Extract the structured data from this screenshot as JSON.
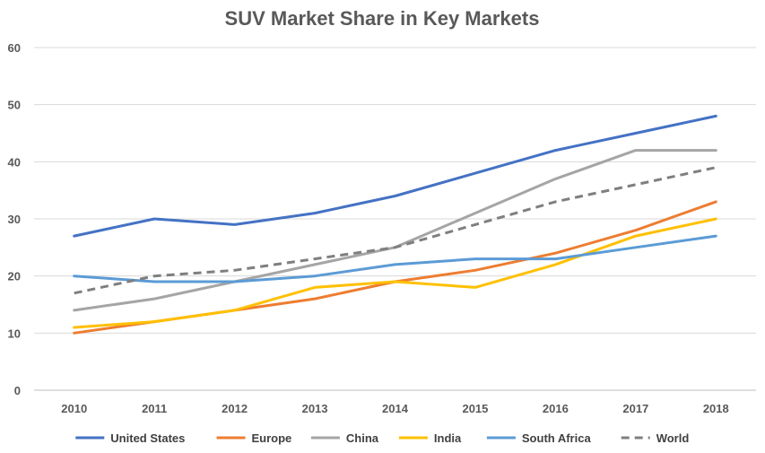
{
  "chart_data": {
    "type": "line",
    "title": "SUV Market Share in Key Markets",
    "xlabel": "",
    "ylabel": "",
    "x": [
      "2010",
      "2011",
      "2012",
      "2013",
      "2014",
      "2015",
      "2016",
      "2017",
      "2018"
    ],
    "ylim": [
      0,
      60
    ],
    "yticks": [
      0,
      10,
      20,
      30,
      40,
      50,
      60
    ],
    "grid": true,
    "legend_position": "bottom",
    "series": [
      {
        "name": "United States",
        "color": "#4472C4",
        "dash": "solid",
        "values": [
          27,
          30,
          29,
          31,
          34,
          38,
          42,
          45,
          48
        ]
      },
      {
        "name": "Europe",
        "color": "#ED7D31",
        "dash": "solid",
        "values": [
          10,
          12,
          14,
          16,
          19,
          21,
          24,
          28,
          33
        ]
      },
      {
        "name": "China",
        "color": "#A5A5A5",
        "dash": "solid",
        "values": [
          14,
          16,
          19,
          22,
          25,
          31,
          37,
          42,
          42
        ]
      },
      {
        "name": "India",
        "color": "#FFC000",
        "dash": "solid",
        "values": [
          11,
          12,
          14,
          18,
          19,
          18,
          22,
          27,
          30
        ]
      },
      {
        "name": "South Africa",
        "color": "#5B9BD5",
        "dash": "solid",
        "values": [
          20,
          19,
          19,
          20,
          22,
          23,
          23,
          25,
          27
        ]
      },
      {
        "name": "World",
        "color": "#7F7F7F",
        "dash": "dashed",
        "values": [
          17,
          20,
          21,
          23,
          25,
          29,
          33,
          36,
          39
        ]
      }
    ]
  }
}
